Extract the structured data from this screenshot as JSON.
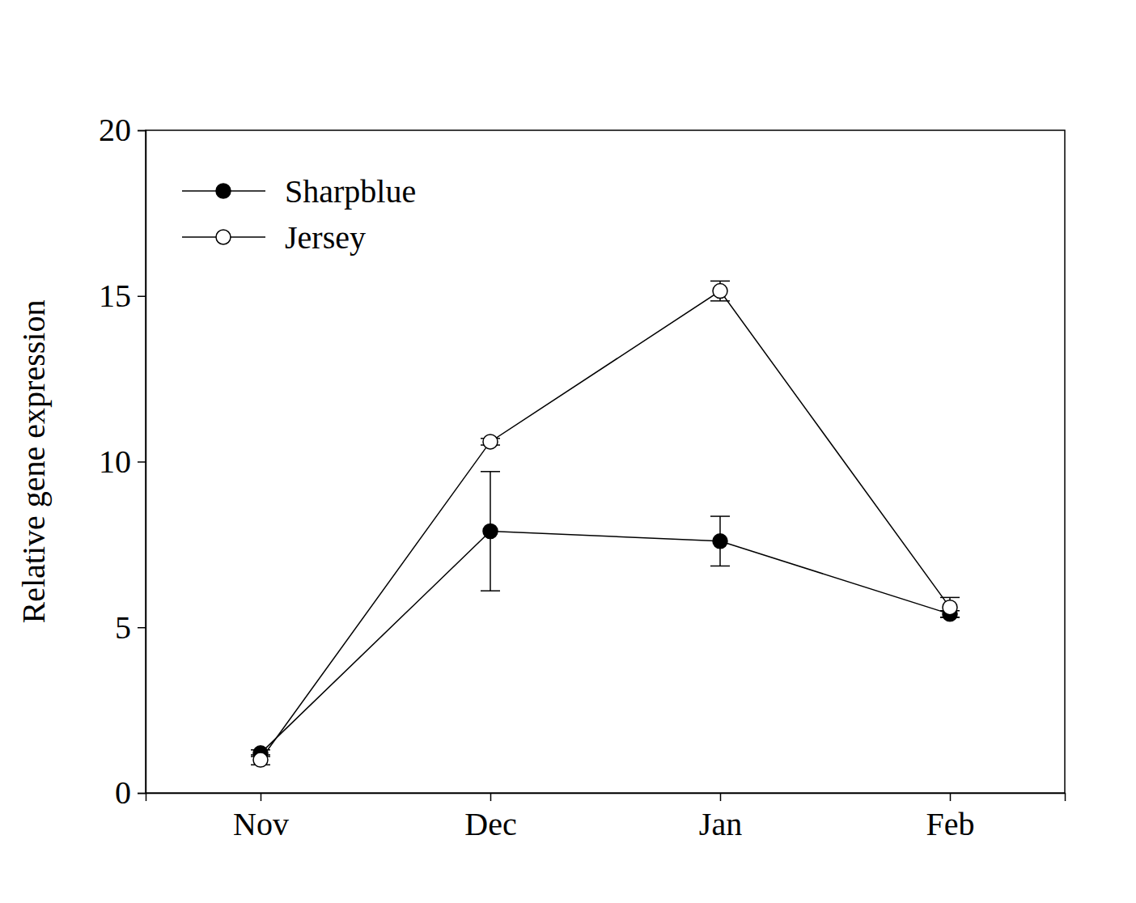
{
  "chart_data": {
    "type": "line",
    "y_label": "Relative gene expression",
    "categories": [
      "Nov",
      "Dec",
      "Jan",
      "Feb"
    ],
    "series": [
      {
        "name": "Sharpblue",
        "color": "#000000",
        "marker": "filled-circle",
        "values": [
          1.2,
          7.9,
          7.6,
          5.4
        ],
        "errors": [
          0.1,
          1.8,
          0.75,
          0.1
        ]
      },
      {
        "name": "Jersey",
        "color": "#000000",
        "marker": "open-circle",
        "values": [
          1.0,
          10.6,
          15.15,
          5.6
        ],
        "errors": [
          0.15,
          0.1,
          0.3,
          0.3
        ]
      }
    ],
    "ylim": [
      0,
      20
    ],
    "yticks": [
      0,
      5,
      10,
      15,
      20
    ],
    "legend": "upper left",
    "grid": false
  }
}
